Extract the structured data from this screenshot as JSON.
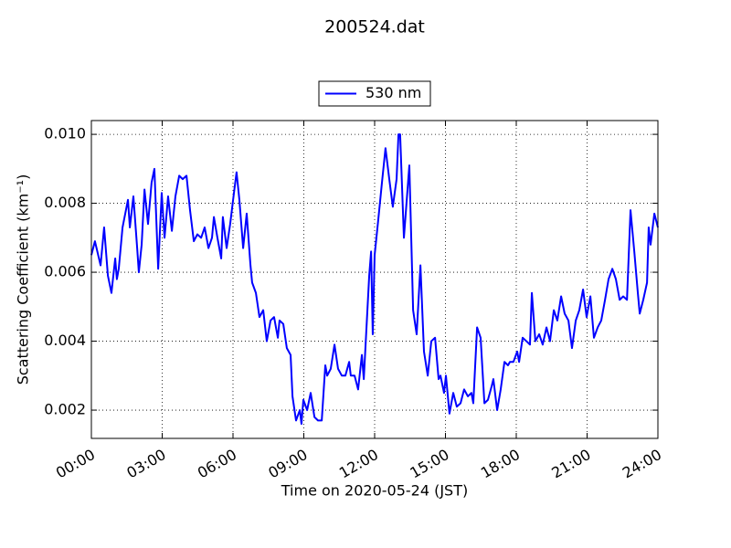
{
  "chart_data": {
    "type": "line",
    "title": "200524.dat",
    "xlabel": "Time on 2020-05-24 (JST)",
    "ylabel": "Scattering Coefficient (km⁻¹)",
    "xlim": [
      0,
      24
    ],
    "ylim": [
      0.00118,
      0.0104
    ],
    "xticks": [
      {
        "value": 0,
        "label": "00:00"
      },
      {
        "value": 3,
        "label": "03:00"
      },
      {
        "value": 6,
        "label": "06:00"
      },
      {
        "value": 9,
        "label": "09:00"
      },
      {
        "value": 12,
        "label": "12:00"
      },
      {
        "value": 15,
        "label": "15:00"
      },
      {
        "value": 18,
        "label": "18:00"
      },
      {
        "value": 21,
        "label": "21:00"
      },
      {
        "value": 24,
        "label": "24:00"
      }
    ],
    "yticks": [
      0.002,
      0.004,
      0.006,
      0.008,
      {
        "value": 0.01,
        "label": "0.010"
      }
    ],
    "grid": true,
    "legend": "upper center",
    "x": [
      0.0,
      0.15,
      0.39,
      0.54,
      0.7,
      0.85,
      1.01,
      1.08,
      1.16,
      1.32,
      1.55,
      1.63,
      1.78,
      1.94,
      2.01,
      2.13,
      2.25,
      2.4,
      2.55,
      2.67,
      2.83,
      2.98,
      3.1,
      3.25,
      3.41,
      3.56,
      3.72,
      3.87,
      4.03,
      4.18,
      4.34,
      4.49,
      4.65,
      4.8,
      4.96,
      5.11,
      5.19,
      5.34,
      5.5,
      5.57,
      5.73,
      5.88,
      6.04,
      6.15,
      6.27,
      6.43,
      6.58,
      6.74,
      6.81,
      6.97,
      7.12,
      7.28,
      7.43,
      7.59,
      7.74,
      7.9,
      7.97,
      8.13,
      8.28,
      8.44,
      8.52,
      8.67,
      8.83,
      8.9,
      8.98,
      9.14,
      9.29,
      9.45,
      9.6,
      9.76,
      9.91,
      9.99,
      10.14,
      10.3,
      10.45,
      10.61,
      10.76,
      10.92,
      10.99,
      11.15,
      11.3,
      11.46,
      11.54,
      11.77,
      11.85,
      11.92,
      12.0,
      12.15,
      12.31,
      12.46,
      12.62,
      12.77,
      12.93,
      13.01,
      13.08,
      13.24,
      13.47,
      13.63,
      13.78,
      13.94,
      14.09,
      14.25,
      14.4,
      14.56,
      14.71,
      14.79,
      14.94,
      15.02,
      15.17,
      15.33,
      15.48,
      15.64,
      15.79,
      15.95,
      16.1,
      16.18,
      16.34,
      16.49,
      16.65,
      16.8,
      16.96,
      17.03,
      17.19,
      17.34,
      17.5,
      17.65,
      17.73,
      17.88,
      18.04,
      18.12,
      18.27,
      18.43,
      18.58,
      18.66,
      18.81,
      18.97,
      19.12,
      19.28,
      19.43,
      19.59,
      19.74,
      19.9,
      20.05,
      20.21,
      20.36,
      20.52,
      20.67,
      20.83,
      20.98,
      21.14,
      21.29,
      21.45,
      21.6,
      21.76,
      21.91,
      22.07,
      22.22,
      22.38,
      22.53,
      22.69,
      22.84,
      23.0,
      23.15,
      23.23,
      23.38,
      23.54,
      23.61,
      23.69,
      23.85,
      24.0
    ],
    "series": [
      {
        "name": "530 nm",
        "color": "#0000ff",
        "values": [
          0.0065,
          0.0069,
          0.0062,
          0.0073,
          0.0059,
          0.0054,
          0.0064,
          0.0058,
          0.0061,
          0.0073,
          0.0081,
          0.0073,
          0.0082,
          0.0067,
          0.006,
          0.0068,
          0.0084,
          0.0074,
          0.0086,
          0.009,
          0.0061,
          0.0083,
          0.007,
          0.0082,
          0.0072,
          0.0082,
          0.0088,
          0.0087,
          0.0088,
          0.0078,
          0.0069,
          0.0071,
          0.007,
          0.0073,
          0.0067,
          0.007,
          0.0076,
          0.007,
          0.0064,
          0.0076,
          0.0067,
          0.0074,
          0.0083,
          0.0089,
          0.0081,
          0.0067,
          0.0077,
          0.0062,
          0.0057,
          0.0054,
          0.0047,
          0.0049,
          0.004,
          0.0046,
          0.0047,
          0.0041,
          0.0046,
          0.0045,
          0.0038,
          0.0036,
          0.0024,
          0.0017,
          0.002,
          0.0016,
          0.0023,
          0.002,
          0.0025,
          0.0018,
          0.0017,
          0.0017,
          0.0033,
          0.003,
          0.0032,
          0.0039,
          0.0032,
          0.003,
          0.003,
          0.0034,
          0.003,
          0.003,
          0.0026,
          0.0036,
          0.0029,
          0.0059,
          0.0066,
          0.0042,
          0.0065,
          0.0075,
          0.0086,
          0.0096,
          0.0087,
          0.0079,
          0.0087,
          0.01,
          0.01,
          0.007,
          0.0091,
          0.0049,
          0.0042,
          0.0062,
          0.0037,
          0.003,
          0.004,
          0.0041,
          0.0029,
          0.003,
          0.0025,
          0.003,
          0.0019,
          0.0025,
          0.0021,
          0.0022,
          0.0026,
          0.0024,
          0.0025,
          0.0022,
          0.0044,
          0.0041,
          0.0022,
          0.0023,
          0.0027,
          0.0029,
          0.002,
          0.0026,
          0.0034,
          0.0033,
          0.0034,
          0.0034,
          0.0037,
          0.0034,
          0.0041,
          0.004,
          0.0039,
          0.0054,
          0.004,
          0.0042,
          0.0039,
          0.0044,
          0.004,
          0.0049,
          0.0046,
          0.0053,
          0.0048,
          0.0046,
          0.0038,
          0.0046,
          0.0049,
          0.0055,
          0.0047,
          0.0053,
          0.0041,
          0.0044,
          0.0046,
          0.0052,
          0.0058,
          0.0061,
          0.0058,
          0.0052,
          0.0053,
          0.0052,
          0.0078,
          0.0066,
          0.0054,
          0.0048,
          0.0052,
          0.0057,
          0.0073,
          0.0068,
          0.0077,
          0.0073
        ]
      }
    ]
  }
}
